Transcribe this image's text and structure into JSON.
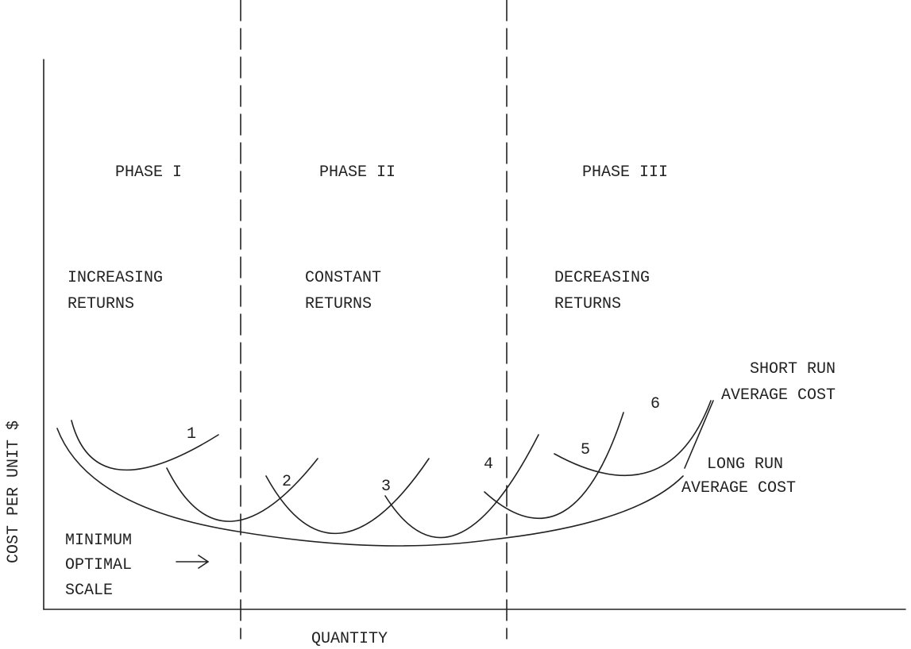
{
  "axes": {
    "y_label": "COST PER UNIT $",
    "x_label": "QUANTITY"
  },
  "phases": [
    {
      "title": "PHASE I",
      "returns": [
        "INCREASING",
        "RETURNS"
      ]
    },
    {
      "title": "PHASE II",
      "returns": [
        "CONSTANT",
        "RETURNS"
      ]
    },
    {
      "title": "PHASE III",
      "returns": [
        "DECREASING",
        "RETURNS"
      ]
    }
  ],
  "curve_labels": [
    "1",
    "2",
    "3",
    "4",
    "5",
    "6"
  ],
  "short_run": [
    "SHORT RUN",
    "AVERAGE COST"
  ],
  "long_run": [
    "LONG RUN",
    "AVERAGE COST"
  ],
  "minimum": [
    "MINIMUM",
    "OPTIMAL",
    "SCALE"
  ]
}
